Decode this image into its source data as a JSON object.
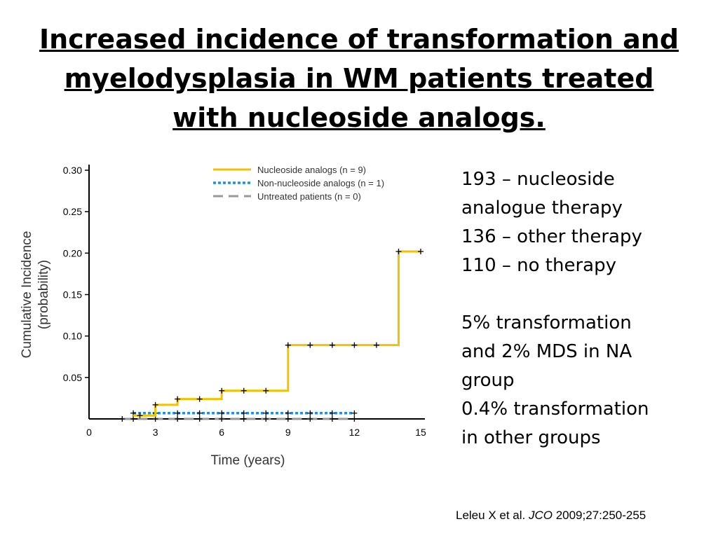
{
  "title": {
    "line1": "Increased incidence of transformation and",
    "line2": "myelodysplasia in WM patients treated",
    "line3": "with nucleoside analogs."
  },
  "notes": {
    "lines": [
      "193 – nucleoside",
      "analogue therapy",
      "136 – other therapy",
      "110 – no therapy",
      "",
      "5% transformation",
      "and 2% MDS in NA",
      "group",
      "0.4% transformation",
      "in other groups"
    ]
  },
  "citation": {
    "authors": "Leleu X et al. ",
    "journal": "JCO",
    "ref": " 2009;27:250-255"
  },
  "chart_data": {
    "type": "line",
    "step": true,
    "xlabel": "Time (years)",
    "ylabel": "Cumulative Incidence (probability)",
    "xlim": [
      0,
      15
    ],
    "ylim": [
      0,
      0.3
    ],
    "xticks": [
      "0",
      "3",
      "6",
      "9",
      "12",
      "15"
    ],
    "yticks": [
      "0.05",
      "0.10",
      "0.15",
      "0.20",
      "0.25",
      "0.30"
    ],
    "legend_position": "top",
    "series": [
      {
        "name": "Nucleoside analogs (n = 9)",
        "color": "#f2c200",
        "style": "solid",
        "x": [
          2,
          3,
          4,
          6,
          9,
          14,
          15
        ],
        "y": [
          0.004,
          0.017,
          0.024,
          0.034,
          0.089,
          0.202,
          0.202
        ],
        "censor_x": [
          2.3,
          3,
          4,
          5,
          6,
          7,
          8,
          9,
          10,
          11,
          12,
          13,
          14,
          15
        ]
      },
      {
        "name": "Non-nucleoside analogs (n = 1)",
        "color": "#1e90e0",
        "style": "dotted",
        "x": [
          2,
          12
        ],
        "y": [
          0.007,
          0.007
        ],
        "censor_x": [
          2,
          3,
          4,
          5,
          6,
          7,
          8,
          9,
          10,
          11,
          12
        ]
      },
      {
        "name": "Untreated patients (n = 0)",
        "color": "#999999",
        "style": "dashed",
        "x": [
          1.5,
          12
        ],
        "y": [
          0,
          0
        ],
        "censor_x": [
          1.5,
          2,
          3,
          4,
          5,
          6,
          7,
          8,
          9,
          10,
          11,
          12
        ]
      }
    ]
  }
}
